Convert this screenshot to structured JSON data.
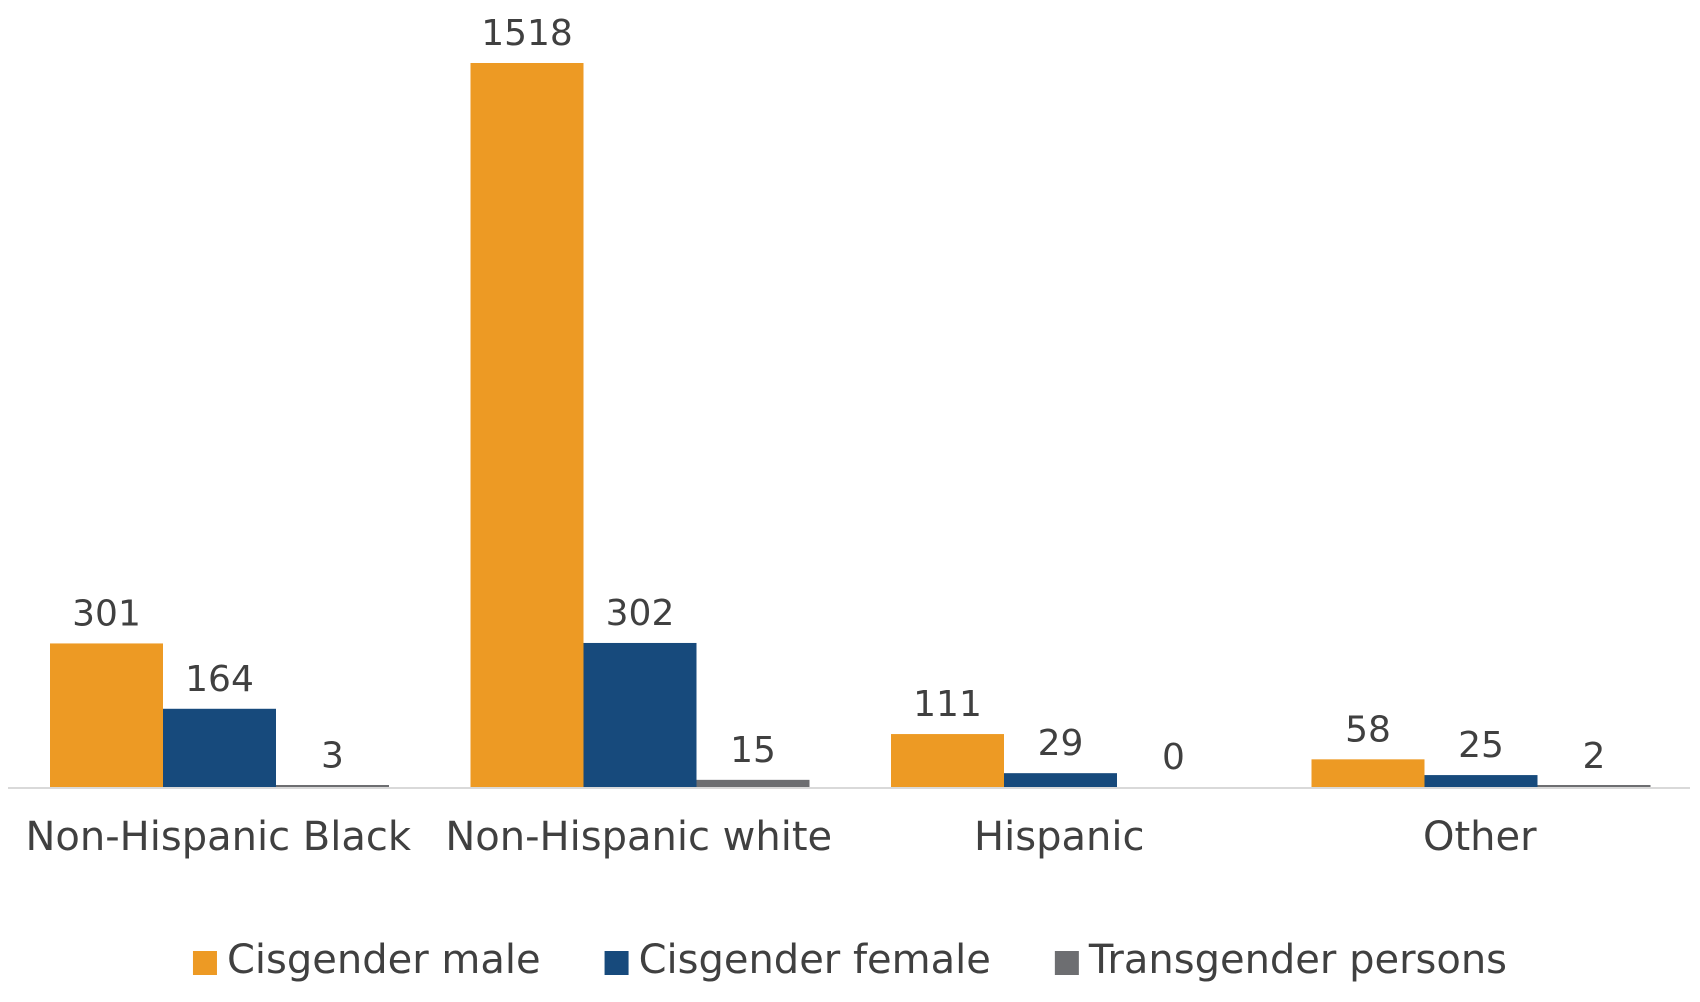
{
  "chart_data": {
    "type": "bar",
    "categories": [
      "Non-Hispanic Black",
      "Non-Hispanic white",
      "Hispanic",
      "Other"
    ],
    "series": [
      {
        "name": "Cisgender male",
        "values": [
          301,
          1518,
          111,
          58
        ],
        "color": "#ED9A24"
      },
      {
        "name": "Cisgender female",
        "values": [
          164,
          302,
          29,
          25
        ],
        "color": "#174A7C"
      },
      {
        "name": "Transgender persons",
        "values": [
          3,
          15,
          0,
          2
        ],
        "color": "#6D6E71"
      }
    ],
    "title": "",
    "xlabel": "",
    "ylabel": "",
    "ylim": [
      0,
      1518
    ],
    "grid": false,
    "legend_position": "bottom",
    "data_labels": true,
    "axis_color": "#D9D9D9"
  }
}
